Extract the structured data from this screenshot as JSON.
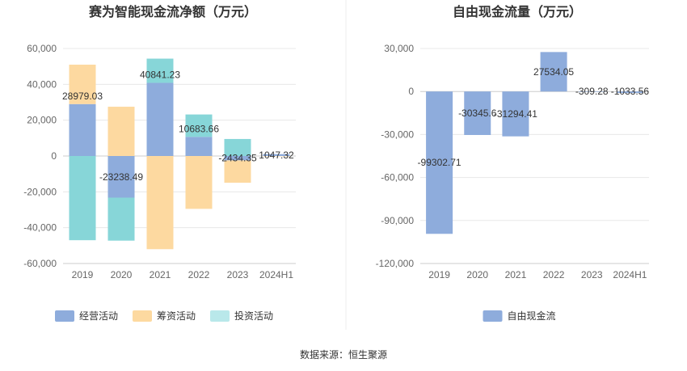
{
  "source": "数据来源：恒生聚源",
  "chart_data": [
    {
      "type": "bar",
      "stacked": true,
      "title": "赛为智能现金流净额（万元）",
      "categories": [
        "2019",
        "2020",
        "2021",
        "2022",
        "2023",
        "2024H1"
      ],
      "ylim": [
        -60000,
        60000
      ],
      "yticks": [
        60000,
        40000,
        20000,
        0,
        -20000,
        -40000,
        -60000
      ],
      "ytick_labels": [
        "60,000",
        "40,000",
        "20,000",
        "0",
        "-20,000",
        "-40,000",
        "-60,000"
      ],
      "grid": true,
      "legend_position": "bottom",
      "series": [
        {
          "name": "经营活动",
          "color": "#8eacdc",
          "values": [
            28979.03,
            -23238.49,
            40841.23,
            10683.66,
            -2434.35,
            1047.32
          ],
          "labels": [
            "28979.03",
            "-23238.49",
            "40841.23",
            "10683.66",
            "-2434.35",
            "1047.32"
          ]
        },
        {
          "name": "筹资活动",
          "color": "#fdd9a0",
          "values": [
            22000,
            27500,
            -52000,
            -29500,
            -12500,
            -200
          ]
        },
        {
          "name": "投资活动",
          "color": "#87d6d8",
          "values": [
            -47000,
            -24000,
            13500,
            12500,
            9500,
            0
          ]
        }
      ]
    },
    {
      "type": "bar",
      "title": "自由现金流量（万元）",
      "categories": [
        "2019",
        "2020",
        "2021",
        "2022",
        "2023",
        "2024H1"
      ],
      "ylim": [
        -120000,
        30000
      ],
      "yticks": [
        30000,
        0,
        -30000,
        -60000,
        -90000,
        -120000
      ],
      "ytick_labels": [
        "30,000",
        "0",
        "-30,000",
        "-60,000",
        "-90,000",
        "-120,000"
      ],
      "grid": true,
      "legend_position": "bottom",
      "series": [
        {
          "name": "自由现金流",
          "color": "#8eacdc",
          "values": [
            -99302.71,
            -30345.6,
            -31294.41,
            27534.05,
            -309.28,
            -1033.56
          ],
          "labels": [
            "-99302.71",
            "-30345.6",
            "-31294.41",
            "27534.05",
            "-309.28",
            "-1033.56"
          ]
        }
      ]
    }
  ]
}
